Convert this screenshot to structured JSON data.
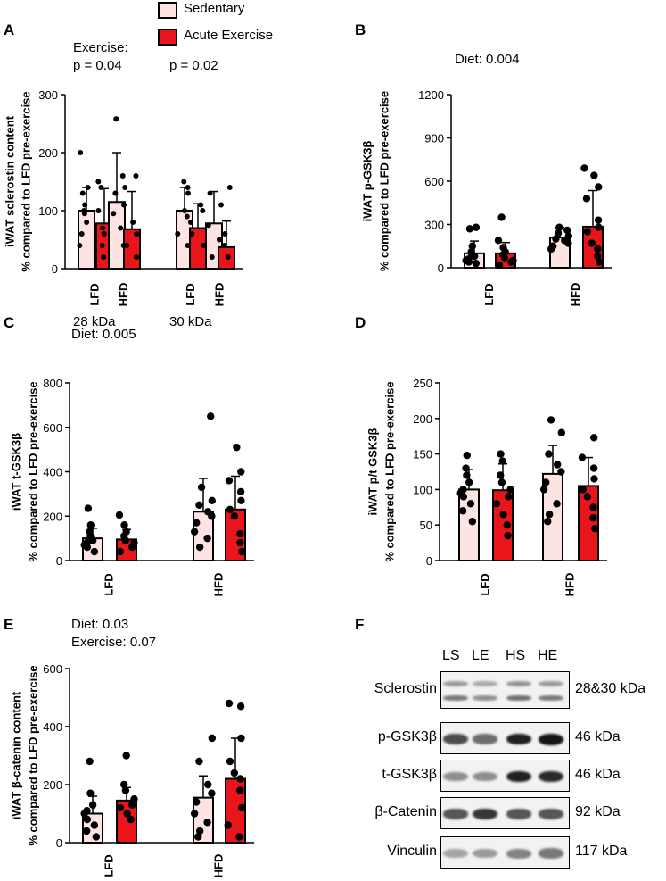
{
  "legend": {
    "items": [
      {
        "label": "Sedentary",
        "color": "#fce4e2"
      },
      {
        "label": "Acute Exercise",
        "color": "#e8161b"
      }
    ]
  },
  "panels": {
    "A": {
      "letter": "A",
      "notes": [
        "Exercise:",
        "p = 0.04",
        "p = 0.02"
      ],
      "group_labels": [
        "28 kDa",
        "30 kDa"
      ]
    },
    "B": {
      "letter": "B",
      "notes": [
        "Diet: 0.004"
      ]
    },
    "C": {
      "letter": "C",
      "notes": [
        "Diet: 0.005"
      ]
    },
    "D": {
      "letter": "D",
      "notes": []
    },
    "E": {
      "letter": "E",
      "notes": [
        "Diet: 0.03",
        "Exercise: 0.07"
      ]
    },
    "F": {
      "letter": "F"
    }
  },
  "chart_data": [
    {
      "id": "A",
      "type": "bar",
      "ylabel": [
        "iWAT sclerostin content",
        "% compared to LFD pre-exercise"
      ],
      "ylim": [
        0,
        300
      ],
      "yticks": [
        0,
        100,
        200,
        300
      ],
      "categories": [
        "LFD",
        "HFD",
        "LFD",
        "HFD"
      ],
      "series": [
        {
          "name": "Sedentary",
          "values": [
            100,
            115,
            100,
            78
          ],
          "errors": [
            40,
            85,
            40,
            55
          ]
        },
        {
          "name": "Acute Exercise",
          "values": [
            78,
            68,
            70,
            37
          ],
          "errors": [
            60,
            65,
            42,
            45
          ]
        }
      ],
      "points": {
        "Sedentary": [
          [
            200,
            140,
            130,
            110,
            100,
            95,
            80,
            60,
            40
          ],
          [
            258,
            258,
            160,
            130,
            110,
            95,
            70,
            40
          ],
          [
            150,
            140,
            130,
            100,
            90,
            60,
            40
          ],
          [
            130,
            110,
            75,
            50,
            20
          ]
        ],
        "Acute Exercise": [
          [
            150,
            140,
            100,
            70,
            60,
            40,
            20
          ],
          [
            160,
            140,
            80,
            60,
            40,
            20
          ],
          [
            110,
            100,
            80,
            60,
            40
          ],
          [
            140,
            60,
            40,
            20
          ]
        ]
      }
    },
    {
      "id": "B",
      "type": "bar",
      "ylabel": [
        "iWAT p-GSK3β",
        "% compared to LFD pre-exercise"
      ],
      "ylim": [
        0,
        1200
      ],
      "yticks": [
        0,
        300,
        600,
        900,
        1200
      ],
      "categories": [
        "LFD",
        "HFD"
      ],
      "series": [
        {
          "name": "Sedentary",
          "values": [
            100,
            210
          ],
          "errors": [
            85,
            70
          ]
        },
        {
          "name": "Acute Exercise",
          "values": [
            100,
            285
          ],
          "errors": [
            75,
            250
          ]
        }
      ],
      "points": {
        "Sedentary": [
          [
            280,
            270,
            150,
            110,
            90,
            80,
            60,
            50,
            40,
            30
          ],
          [
            280,
            260,
            240,
            220,
            200,
            190,
            170,
            150,
            130
          ]
        ],
        "Acute Exercise": [
          [
            350,
            190,
            140,
            110,
            90,
            70,
            50,
            40,
            20
          ],
          [
            690,
            640,
            560,
            480,
            330,
            280,
            250,
            170,
            130,
            80,
            40
          ]
        ]
      }
    },
    {
      "id": "C",
      "type": "bar",
      "ylabel": [
        "iWAT t-GSK3β",
        "% compared to LFD pre-exercise"
      ],
      "ylim": [
        0,
        800
      ],
      "yticks": [
        0,
        200,
        400,
        600,
        800
      ],
      "categories": [
        "LFD",
        "HFD"
      ],
      "series": [
        {
          "name": "Sedentary",
          "values": [
            100,
            220
          ],
          "errors": [
            45,
            150
          ]
        },
        {
          "name": "Acute Exercise",
          "values": [
            95,
            230
          ],
          "errors": [
            45,
            150
          ]
        }
      ],
      "points": {
        "Sedentary": [
          [
            235,
            160,
            130,
            110,
            90,
            80,
            70,
            60,
            40
          ],
          [
            650,
            330,
            270,
            250,
            220,
            200,
            170,
            130,
            100,
            60
          ]
        ],
        "Acute Exercise": [
          [
            205,
            160,
            130,
            110,
            90,
            80,
            60,
            40
          ],
          [
            510,
            400,
            360,
            310,
            270,
            230,
            200,
            120,
            80,
            40
          ]
        ]
      }
    },
    {
      "id": "D",
      "type": "bar",
      "ylabel": [
        "iWAT p/t GSK3β",
        "% compared to LFD pre-exercise"
      ],
      "ylim": [
        0,
        250
      ],
      "yticks": [
        0,
        50,
        100,
        150,
        200,
        250
      ],
      "categories": [
        "LFD",
        "HFD"
      ],
      "series": [
        {
          "name": "Sedentary",
          "values": [
            100,
            122
          ],
          "errors": [
            28,
            40
          ]
        },
        {
          "name": "Acute Exercise",
          "values": [
            99,
            105
          ],
          "errors": [
            37,
            40
          ]
        }
      ],
      "points": {
        "Sedentary": [
          [
            148,
            130,
            120,
            110,
            100,
            95,
            90,
            80,
            70,
            55
          ],
          [
            198,
            180,
            150,
            135,
            125,
            110,
            100,
            80,
            65,
            55
          ]
        ],
        "Acute Exercise": [
          [
            150,
            140,
            120,
            110,
            100,
            90,
            80,
            65,
            50,
            35
          ],
          [
            173,
            145,
            130,
            115,
            100,
            90,
            75,
            60,
            45
          ]
        ]
      }
    },
    {
      "id": "E",
      "type": "bar",
      "ylabel": [
        "iWAT β-catenin content",
        "% compared to LFD pre-exercise"
      ],
      "ylim": [
        0,
        600
      ],
      "yticks": [
        0,
        200,
        400,
        600
      ],
      "categories": [
        "LFD",
        "HFD"
      ],
      "series": [
        {
          "name": "Sedentary",
          "values": [
            100,
            155
          ],
          "errors": [
            60,
            75
          ]
        },
        {
          "name": "Acute Exercise",
          "values": [
            145,
            220
          ],
          "errors": [
            45,
            140
          ]
        }
      ],
      "points": {
        "Sedentary": [
          [
            280,
            170,
            130,
            110,
            100,
            80,
            60,
            40,
            20
          ],
          [
            360,
            280,
            200,
            170,
            140,
            100,
            70,
            40,
            20
          ]
        ],
        "Acute Exercise": [
          [
            300,
            200,
            180,
            150,
            130,
            120,
            100,
            80
          ],
          [
            480,
            470,
            360,
            280,
            240,
            220,
            180,
            120,
            60,
            20
          ]
        ]
      }
    }
  ],
  "western_blot": {
    "lanes": [
      "LS",
      "LE",
      "HS",
      "HE"
    ],
    "rows": [
      {
        "protein": "Sclerostin",
        "size": "28&30 kDa",
        "intensity": [
          0.55,
          0.45,
          0.6,
          0.55
        ],
        "double": true
      },
      {
        "protein": "p-GSK3β",
        "size": "46 kDa",
        "intensity": [
          0.75,
          0.6,
          0.95,
          1.0
        ],
        "double": false
      },
      {
        "protein": "t-GSK3β",
        "size": "46 kDa",
        "intensity": [
          0.45,
          0.45,
          0.95,
          0.9
        ],
        "double": false
      },
      {
        "protein": "β-Catenin",
        "size": "92 kDa",
        "intensity": [
          0.7,
          0.85,
          0.7,
          0.7
        ],
        "double": false
      },
      {
        "protein": "Vinculin",
        "size": "117 kDa",
        "intensity": [
          0.35,
          0.4,
          0.5,
          0.55
        ],
        "double": false
      }
    ]
  }
}
